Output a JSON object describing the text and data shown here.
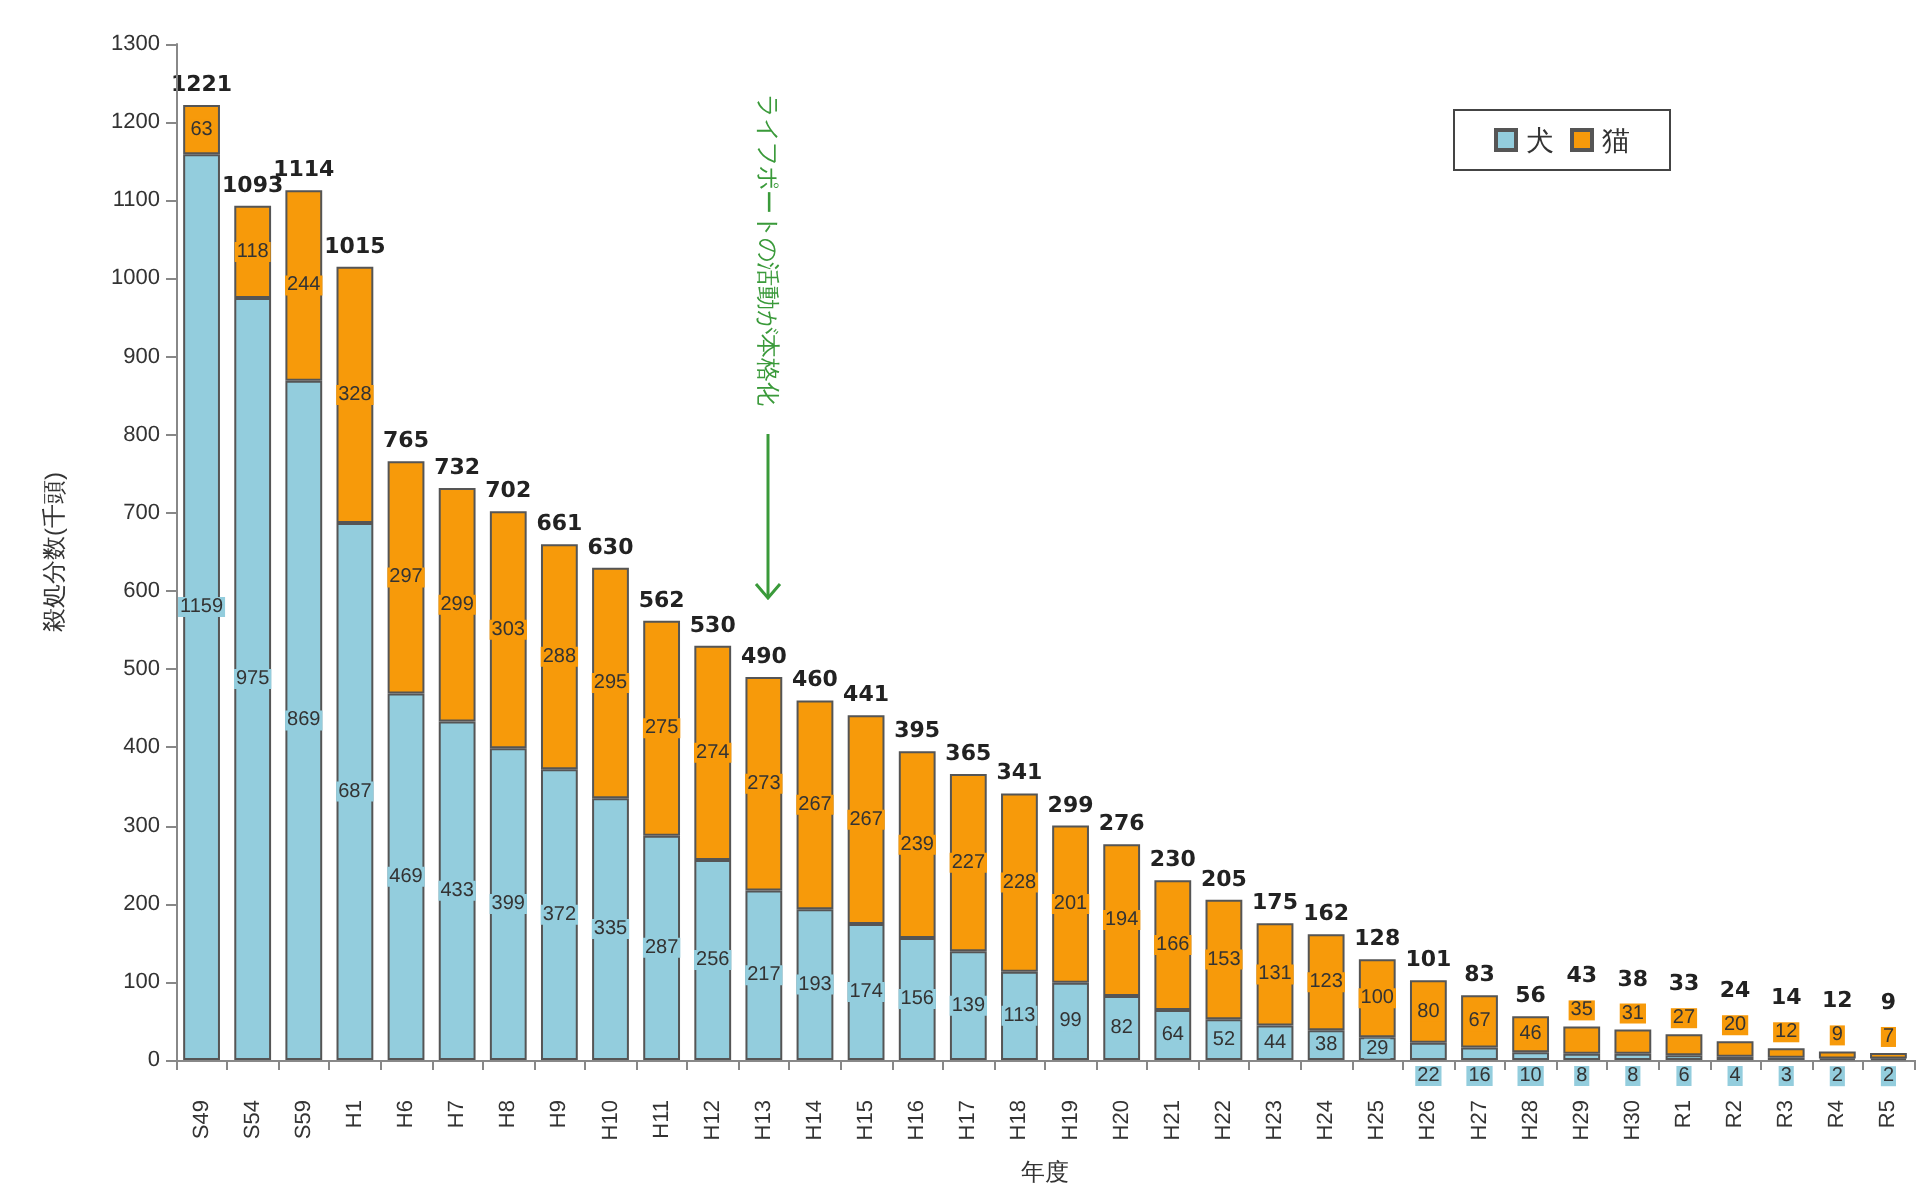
{
  "chart_data": {
    "type": "bar",
    "stacked": true,
    "xlabel": "年度",
    "ylabel": "殺処分数(千頭)",
    "categories": [
      "S49",
      "S54",
      "S59",
      "H1",
      "H6",
      "H7",
      "H8",
      "H9",
      "H10",
      "H11",
      "H12",
      "H13",
      "H14",
      "H15",
      "H16",
      "H17",
      "H18",
      "H19",
      "H20",
      "H21",
      "H22",
      "H23",
      "H24",
      "H25",
      "H26",
      "H27",
      "H28",
      "H29",
      "H30",
      "R1",
      "R2",
      "R3",
      "R4",
      "R5"
    ],
    "series": [
      {
        "name": "犬",
        "color": "#93cddd",
        "values": [
          1159,
          975,
          869,
          687,
          469,
          433,
          399,
          372,
          335,
          287,
          256,
          217,
          193,
          174,
          156,
          139,
          113,
          99,
          82,
          64,
          52,
          44,
          38,
          29,
          22,
          16,
          10,
          8,
          8,
          6,
          4,
          3,
          2,
          2
        ]
      },
      {
        "name": "猫",
        "color": "#f79a0a",
        "values": [
          63,
          118,
          244,
          328,
          297,
          299,
          303,
          288,
          295,
          275,
          274,
          273,
          267,
          267,
          239,
          227,
          228,
          201,
          194,
          166,
          153,
          131,
          123,
          100,
          80,
          67,
          46,
          35,
          31,
          27,
          20,
          12,
          9,
          7
        ]
      }
    ],
    "totals": [
      "1221",
      "1093",
      "1114",
      "1015",
      "765",
      "732",
      "702",
      "661",
      "630",
      "562",
      "530",
      "490",
      "460",
      "441",
      "395",
      "365",
      "341",
      "299",
      "276",
      "230",
      "205",
      "175",
      "162",
      "128",
      "101",
      "83",
      "56",
      "43",
      "38",
      "33",
      "24",
      "14",
      "12",
      "9"
    ],
    "ylim": [
      0,
      1300
    ],
    "yticks": [
      0,
      100,
      200,
      300,
      400,
      500,
      600,
      700,
      800,
      900,
      1000,
      1100,
      1200,
      1300
    ],
    "data_labels": true,
    "grid": false,
    "legend": "top right",
    "annotations": [
      "ライフポートの活動が本格化"
    ]
  }
}
